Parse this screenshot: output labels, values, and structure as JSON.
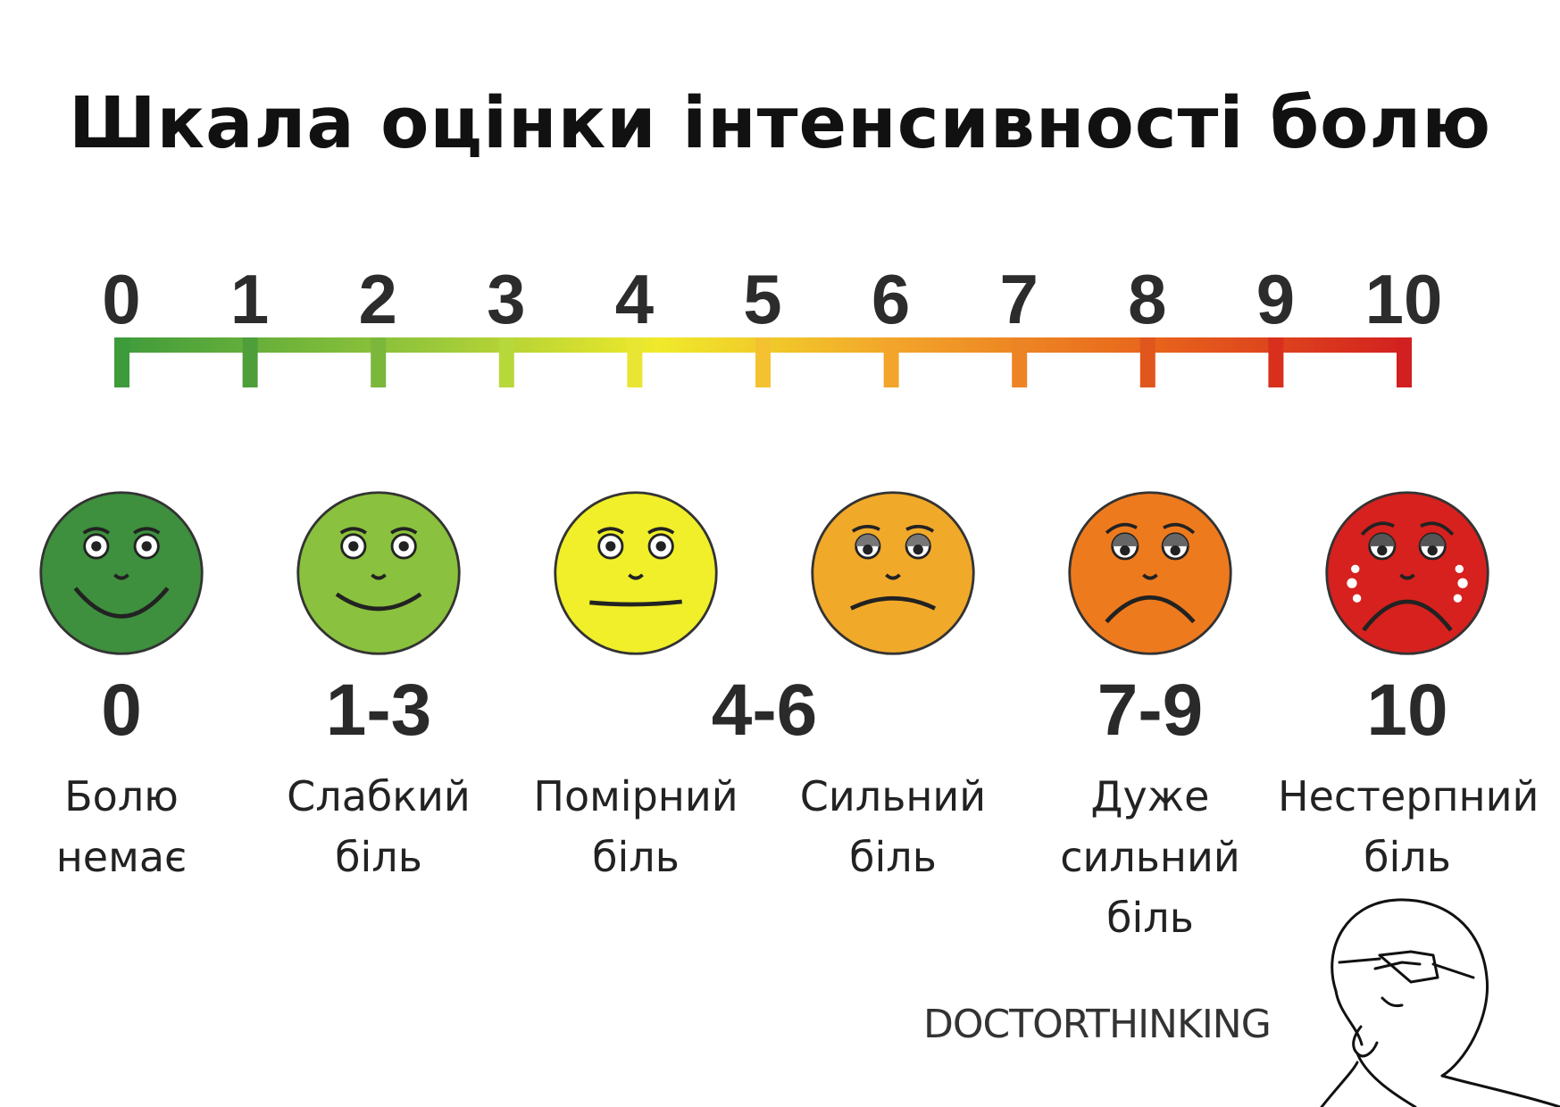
{
  "title": "Шкала оцінки інтенсивності болю",
  "scale": {
    "ticks": [
      "0",
      "1",
      "2",
      "3",
      "4",
      "5",
      "6",
      "7",
      "8",
      "9",
      "10"
    ],
    "gradient_colors": [
      "#3e9b3b",
      "#9cc93a",
      "#f0ea2a",
      "#f2a52a",
      "#e8651c",
      "#d21f1f"
    ],
    "tick_colors": [
      "#3e9b3b",
      "#4e9e3a",
      "#7bb73b",
      "#b7d83a",
      "#e9e633",
      "#f4c231",
      "#f2a52a",
      "#ec8425",
      "#e0561d",
      "#d8301d",
      "#d21f1f"
    ]
  },
  "levels": [
    {
      "range": "0",
      "label_line1": "Болю",
      "label_line2": "немає",
      "label_line3": "",
      "face_color": "#3e8f3e",
      "mood": "happy"
    },
    {
      "range": "1-3",
      "label_line1": "Слабкий",
      "label_line2": "біль",
      "label_line3": "",
      "face_color": "#8ac13e",
      "mood": "happy"
    },
    {
      "range": "4-6",
      "label_line1": "Помірний",
      "label_line2": "біль",
      "label_line3": "",
      "face_color": "#f0ef2a",
      "mood": "neutral"
    },
    {
      "range": "",
      "label_line1": "Сильний",
      "label_line2": "біль",
      "label_line3": "",
      "face_color": "#f1a92a",
      "mood": "sad"
    },
    {
      "range": "7-9",
      "label_line1": "Дуже",
      "label_line2": "сильний",
      "label_line3": "біль",
      "face_color": "#ee7a1e",
      "mood": "sadder"
    },
    {
      "range": "10",
      "label_line1": "Нестерпний",
      "label_line2": "біль",
      "label_line3": "",
      "face_color": "#d6211e",
      "mood": "crying"
    }
  ],
  "brand": "DOCTORTHINKING",
  "icons": {
    "mascot": "thinking-man-icon"
  }
}
